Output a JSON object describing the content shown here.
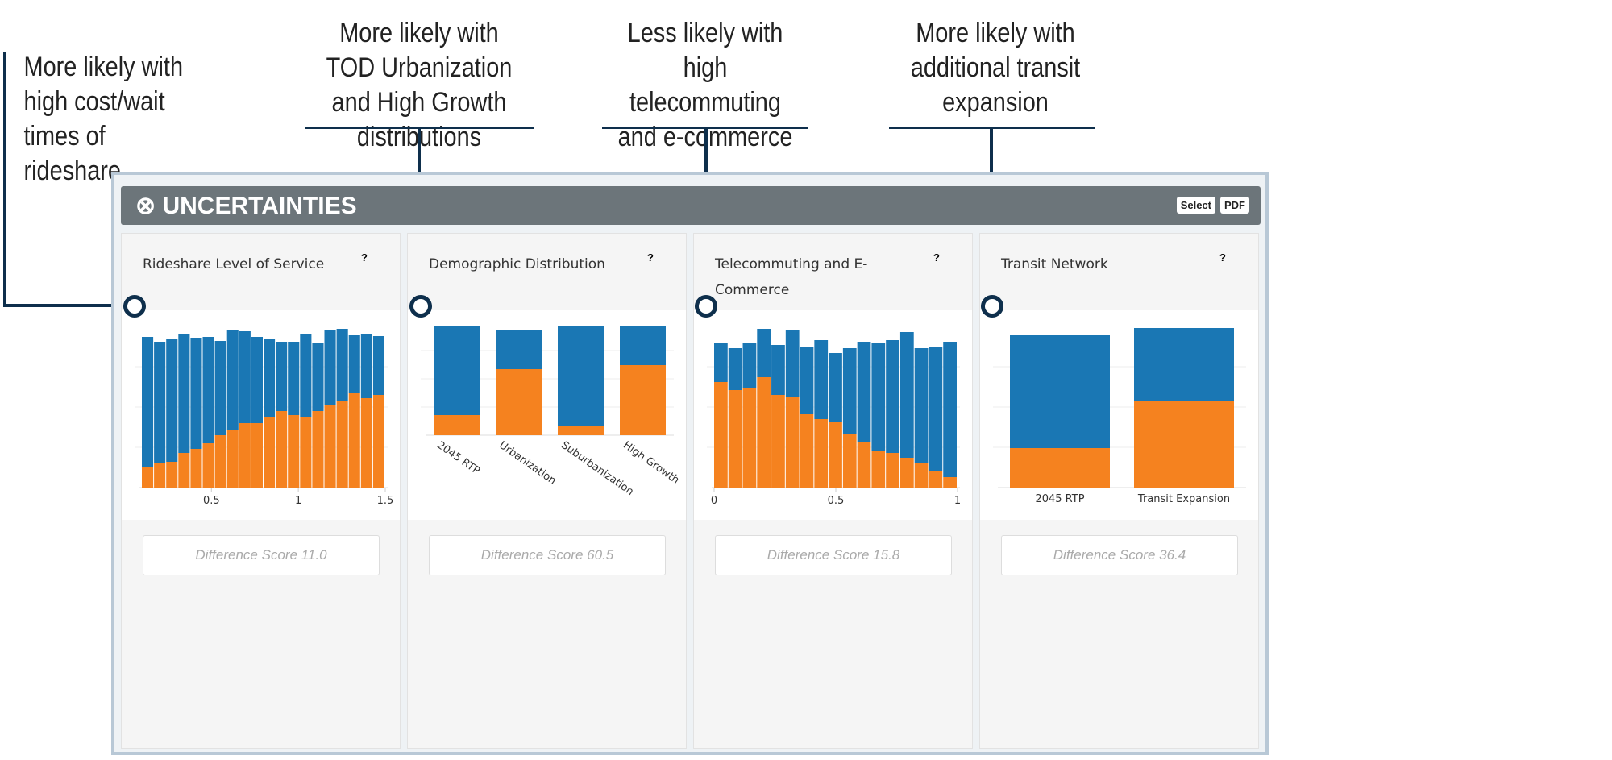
{
  "annotations": [
    "More likely with high cost/wait times of rideshare",
    "More likely with TOD Urbanization and High Growth distributions",
    "Less likely with high telecommuting and e-commerce",
    "More likely with additional transit expansion"
  ],
  "header": {
    "title": "⊗ UNCERTAINTIES",
    "select": "Select",
    "pdf": "PDF"
  },
  "colors": {
    "blue": "#1a77b4",
    "orange": "#f5821f"
  },
  "cards": [
    {
      "title": "Rideshare Level of Service",
      "help": "?",
      "score": "Difference Score 11.0"
    },
    {
      "title": "Demographic Distribution",
      "help": "?",
      "score": "Difference Score 60.5"
    },
    {
      "title": "Telecommuting and E-Commerce",
      "help": "?",
      "score": "Difference Score 15.8"
    },
    {
      "title": "Transit Network",
      "help": "?",
      "score": "Difference Score 36.4"
    }
  ],
  "chart_data": [
    {
      "type": "bar",
      "stacked": true,
      "title": "Rideshare Level of Service",
      "xticks": [
        "0.5",
        "1",
        "1.5"
      ],
      "xlim": [
        0.1,
        1.5
      ],
      "total": [
        187,
        181,
        184,
        190,
        185,
        187,
        182,
        196,
        194,
        187,
        184,
        181,
        181,
        190,
        180,
        196,
        197,
        189,
        191,
        188
      ],
      "orange": [
        25,
        30,
        32,
        43,
        48,
        55,
        65,
        72,
        80,
        80,
        87,
        95,
        90,
        87,
        95,
        102,
        107,
        117,
        111,
        115
      ]
    },
    {
      "type": "bar",
      "stacked": true,
      "title": "Demographic Distribution",
      "categories": [
        "2045 RTP",
        "Urbanization",
        "Suburbanization",
        "High Growth"
      ],
      "total": [
        135,
        130,
        135,
        135
      ],
      "orange": [
        25,
        82,
        12,
        87
      ]
    },
    {
      "type": "bar",
      "stacked": true,
      "title": "Telecommuting and E-Commerce",
      "xticks": [
        "0",
        "0.5",
        "1"
      ],
      "xlim": [
        0,
        1
      ],
      "total": [
        179,
        173,
        180,
        197,
        177,
        195,
        174,
        183,
        167,
        173,
        181,
        180,
        183,
        193,
        173,
        174,
        181
      ],
      "orange": [
        131,
        121,
        123,
        137,
        115,
        113,
        91,
        85,
        81,
        67,
        57,
        45,
        43,
        37,
        31,
        21,
        13
      ]
    },
    {
      "type": "bar",
      "stacked": true,
      "title": "Transit Network",
      "categories": [
        "2045 RTP",
        "Transit Expansion"
      ],
      "total": [
        189,
        198
      ],
      "orange": [
        49,
        108
      ]
    }
  ]
}
